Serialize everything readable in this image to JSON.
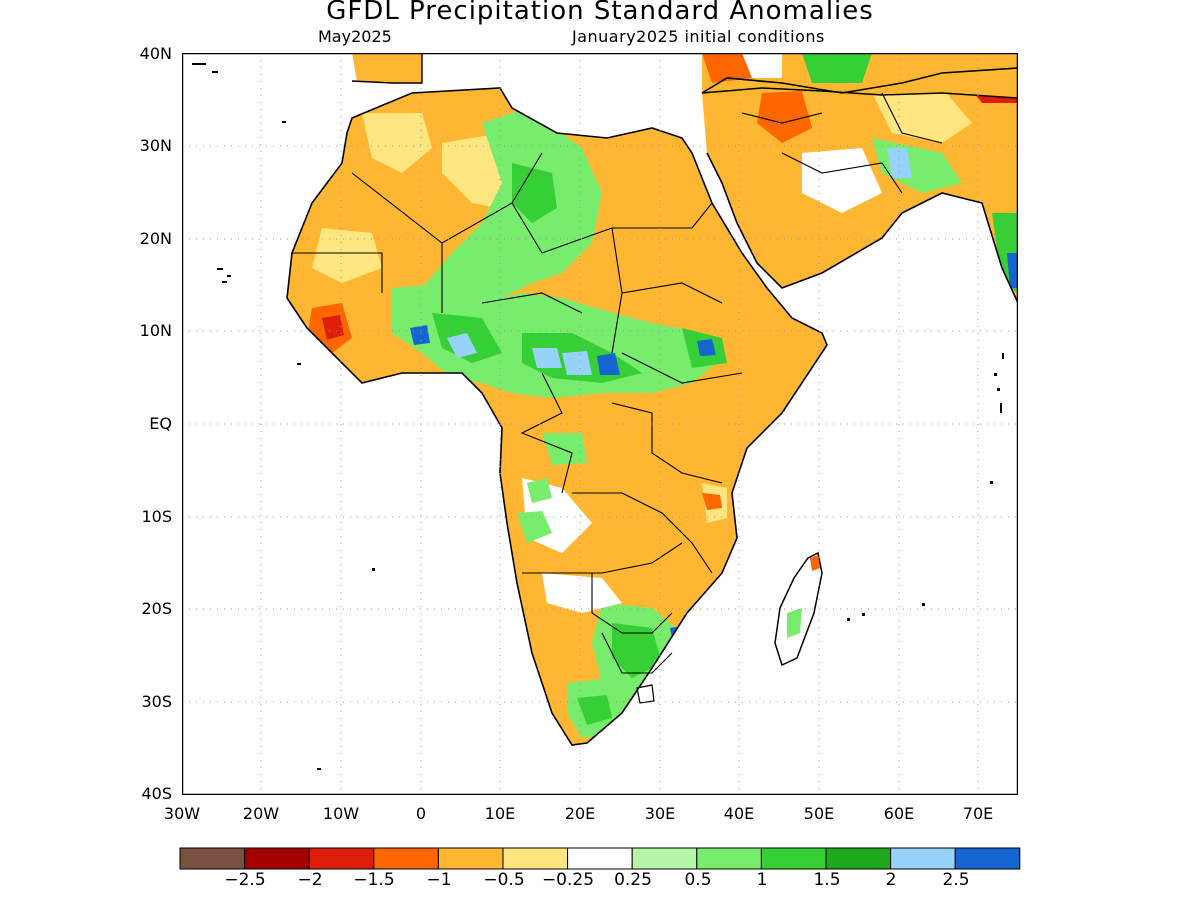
{
  "title": "GFDL Precipitation Standard Anomalies",
  "subtitle_left": "May2025",
  "subtitle_right": "January2025 initial conditions",
  "lat_labels": [
    "40N",
    "30N",
    "20N",
    "10N",
    "EQ",
    "10S",
    "20S",
    "30S",
    "40S"
  ],
  "lon_labels": [
    "30W",
    "20W",
    "10W",
    "0",
    "10E",
    "20E",
    "30E",
    "40E",
    "50E",
    "60E",
    "70E"
  ],
  "map_extent": {
    "lon": [
      -30,
      75
    ],
    "lat": [
      -40,
      40
    ]
  },
  "grid": "dotted",
  "colorbar": {
    "colors": [
      "#7a5040",
      "#a50000",
      "#de1e0a",
      "#ff6600",
      "#ffb733",
      "#ffe680",
      "#ffffff",
      "#b4f5a8",
      "#78ec6c",
      "#36cf36",
      "#1ea81e",
      "#96d2fa",
      "#1464d2"
    ],
    "labels": [
      "−2.5",
      "−2",
      "−1.5",
      "−1",
      "−0.5",
      "−0.25",
      "0.25",
      "0.5",
      "1",
      "1.5",
      "2",
      "2.5"
    ]
  },
  "palette": {
    "light_orange": "#ffb733",
    "yellow": "#ffe680",
    "orange": "#ff6600",
    "red": "#de1e0a",
    "dark_red": "#a50000",
    "light_green": "#b4f5a8",
    "green": "#78ec6c",
    "mid_green": "#36cf36",
    "dark_green": "#1ea81e",
    "light_blue": "#96d2fa",
    "blue": "#1464d2"
  }
}
